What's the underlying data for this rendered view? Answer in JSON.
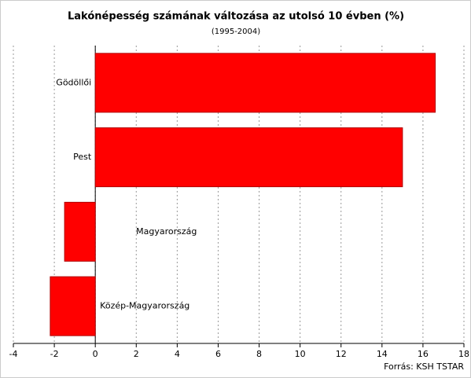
{
  "chart_data": {
    "type": "barh",
    "title": "Lakónépesség számának változása az utolsó 10 évben (%)",
    "subtitle": "(1995-2004)",
    "source": "Forrás: KSH TSTAR",
    "categories": [
      "Gödöllői",
      "Pest",
      "Magyarország",
      "Közép-Magyarország"
    ],
    "values": [
      16.6,
      15.0,
      -1.5,
      -2.2
    ],
    "color": "#ff0000",
    "xlim": [
      -4,
      18
    ],
    "xticks": [
      -4,
      -2,
      0,
      2,
      4,
      6,
      8,
      10,
      12,
      14,
      16,
      18
    ],
    "grid": true
  }
}
